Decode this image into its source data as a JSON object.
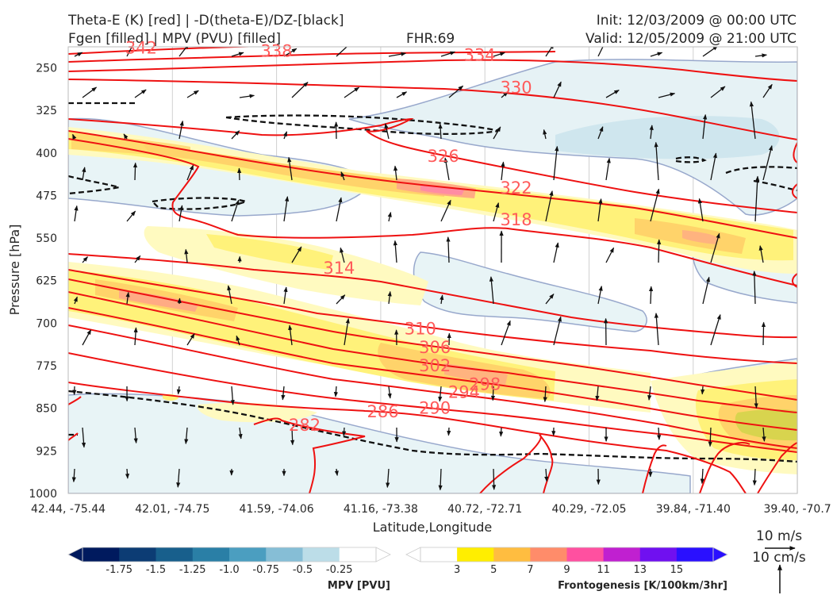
{
  "header": {
    "title_line1": "Theta-E (K) [red] | -D(theta-E)/DZ-[black]",
    "title_line2": "Fgen [filled] | MPV (PVU) [filled]",
    "fhr": "FHR:69",
    "init": "Init: 12/03/2009 @ 00:00 UTC",
    "valid": "Valid: 12/05/2009 @ 21:00 UTC"
  },
  "chart_data": {
    "type": "cross-section",
    "xlabel": "Latitude,Longitude",
    "ylabel": "Pressure [hPa]",
    "x_ticks": [
      "42.44, -75.44",
      "42.01, -74.75",
      "41.59, -74.06",
      "41.16, -73.38",
      "40.72, -72.71",
      "40.29, -72.05",
      "39.84, -71.40",
      "39.40, -70.7"
    ],
    "y_ticks": [
      250,
      325,
      400,
      475,
      550,
      625,
      700,
      775,
      850,
      925,
      1000
    ],
    "ylim": [
      1000,
      213
    ],
    "grid": true,
    "theta_e_labels": [
      {
        "value": "342",
        "x": 0.7,
        "p": 215
      },
      {
        "value": "338",
        "x": 2.0,
        "p": 221
      },
      {
        "value": "334",
        "x": 3.95,
        "p": 228
      },
      {
        "value": "330",
        "x": 4.3,
        "p": 285
      },
      {
        "value": "326",
        "x": 3.6,
        "p": 406
      },
      {
        "value": "322",
        "x": 4.3,
        "p": 462
      },
      {
        "value": "318",
        "x": 4.3,
        "p": 518
      },
      {
        "value": "314",
        "x": 2.6,
        "p": 603
      },
      {
        "value": "310",
        "x": 3.38,
        "p": 710
      },
      {
        "value": "306",
        "x": 3.52,
        "p": 743
      },
      {
        "value": "302",
        "x": 3.52,
        "p": 775
      },
      {
        "value": "298",
        "x": 4.0,
        "p": 808
      },
      {
        "value": "294",
        "x": 3.8,
        "p": 822
      },
      {
        "value": "290",
        "x": 3.52,
        "p": 850
      },
      {
        "value": "286",
        "x": 3.02,
        "p": 856
      },
      {
        "value": "282",
        "x": 2.27,
        "p": 880
      }
    ],
    "wind_reference": {
      "horizontal": "10 m/s",
      "vertical": "10 cm/s"
    },
    "colorbars": [
      {
        "label": "MPV [PVU]",
        "ticks": [
          "-1.75",
          "-1.5",
          "-1.25",
          "-1.0",
          "-0.75",
          "-0.5",
          "-0.25"
        ],
        "colors": [
          "#001a5e",
          "#0c3c74",
          "#185f8c",
          "#2a7fa6",
          "#4b9ec0",
          "#86bed6",
          "#bcdde8",
          "#ffffff"
        ]
      },
      {
        "label": "Frontogenesis [K/100km/3hr]",
        "ticks": [
          "3",
          "5",
          "7",
          "9",
          "11",
          "13",
          "15"
        ],
        "colors": [
          "#ffffff",
          "#ffee00",
          "#ffbd40",
          "#ff8c6a",
          "#ff50a0",
          "#c020d0",
          "#7010f0",
          "#2a10ff"
        ]
      }
    ]
  }
}
